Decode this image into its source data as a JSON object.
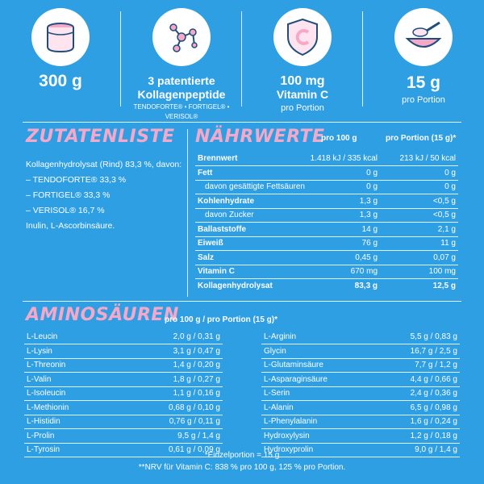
{
  "features": [
    {
      "icon": "collagen-jar-icon",
      "line1": "300 g"
    },
    {
      "icon": "molecule-icon",
      "line1": "3 patentierte",
      "line2": "Kollagenpeptide",
      "line3": "TENDOFORTE® • FORTIGEL® • VERISOL®"
    },
    {
      "icon": "vitamin-c-shield-icon",
      "line1": "100 mg",
      "line2": "Vitamin C",
      "line3": "pro Portion"
    },
    {
      "icon": "scoop-bowl-icon",
      "line1": "15 g",
      "line2": "pro Portion"
    }
  ],
  "ingredients": {
    "heading": "Zutatenliste",
    "lines": [
      "Kollagenhydrolysat (Rind) 83,3 %, davon:",
      "– TENDOFORTE® 33,3 %",
      "– FORTIGEL® 33,3 %",
      "– VERISOL® 16,7 %",
      "Inulin, L-Ascorbinsäure."
    ]
  },
  "nutrition": {
    "heading": "Nährwerte",
    "col1": "pro 100 g",
    "col2": "pro Portion (15 g)*",
    "rows": [
      {
        "label": "Brennwert",
        "v1": "1.418 kJ / 335 kcal",
        "v2": "213 kJ / 50 kcal",
        "style": "b"
      },
      {
        "label": "Fett",
        "v1": "0 g",
        "v2": "0 g",
        "style": "b"
      },
      {
        "label": "davon gesättigte Fettsäuren",
        "v1": "0 g",
        "v2": "0 g",
        "style": "sub"
      },
      {
        "label": "Kohlenhydrate",
        "v1": "1,3 g",
        "v2": "<0,5 g",
        "style": "b"
      },
      {
        "label": "davon Zucker",
        "v1": "1,3 g",
        "v2": "<0,5 g",
        "style": "sub"
      },
      {
        "label": "Ballaststoffe",
        "v1": "14 g",
        "v2": "2,1 g",
        "style": "b"
      },
      {
        "label": "Eiweiß",
        "v1": "76 g",
        "v2": "11 g",
        "style": "b"
      },
      {
        "label": "Salz",
        "v1": "0,45 g",
        "v2": "0,07 g",
        "style": "b"
      },
      {
        "label": "Vitamin C",
        "v1": "670 mg",
        "v2": "100 mg",
        "style": "b"
      },
      {
        "label": "Kollagenhydrolysat",
        "v1": "83,3 g",
        "v2": "12,5 g",
        "style": "b last"
      }
    ]
  },
  "amino": {
    "heading": "Aminosäuren",
    "subheading": "pro 100 g / pro Portion (15 g)*",
    "left": [
      {
        "name": "L-Leucin",
        "value": "2,0 g / 0,31 g"
      },
      {
        "name": "L-Lysin",
        "value": "3,1 g / 0,47 g"
      },
      {
        "name": "L-Threonin",
        "value": "1,4 g / 0,20 g"
      },
      {
        "name": "L-Valin",
        "value": "1,8 g / 0,27 g"
      },
      {
        "name": "L-Isoleucin",
        "value": "1,1 g / 0,16 g"
      },
      {
        "name": "L-Methionin",
        "value": "0,68 g / 0,10 g"
      },
      {
        "name": "L-Histidin",
        "value": "0,76 g / 0,11 g"
      },
      {
        "name": "L-Prolin",
        "value": "9,5 g / 1,4 g"
      },
      {
        "name": "L-Tyrosin",
        "value": "0,61 g / 0,09 g"
      }
    ],
    "right": [
      {
        "name": "L-Arginin",
        "value": "5,5 g / 0,83 g"
      },
      {
        "name": "Glycin",
        "value": "16,7 g / 2,5 g"
      },
      {
        "name": "L-Glutaminsäure",
        "value": "7,7 g / 1,2 g"
      },
      {
        "name": "L-Asparaginsäure",
        "value": "4,4 g / 0,66 g"
      },
      {
        "name": "L-Serin",
        "value": "2,4 g / 0,36 g"
      },
      {
        "name": "L-Alanin",
        "value": "6,5 g / 0,98 g"
      },
      {
        "name": "L-Phenylalanin",
        "value": "1,6 g / 0,24 g"
      },
      {
        "name": "Hydroxylysin",
        "value": "1,2 g / 0,18 g"
      },
      {
        "name": "Hydroxyprolin",
        "value": "9,0 g / 1,4 g"
      }
    ]
  },
  "footnotes": [
    "*Einzelportion = 15 g",
    "**NRV für Vitamin C: 838 % pro 100 g, 125 % pro Portion."
  ],
  "colors": {
    "background": "#2f9fe3",
    "accent_pink": "#f7a8c8",
    "text": "#ffffff"
  }
}
